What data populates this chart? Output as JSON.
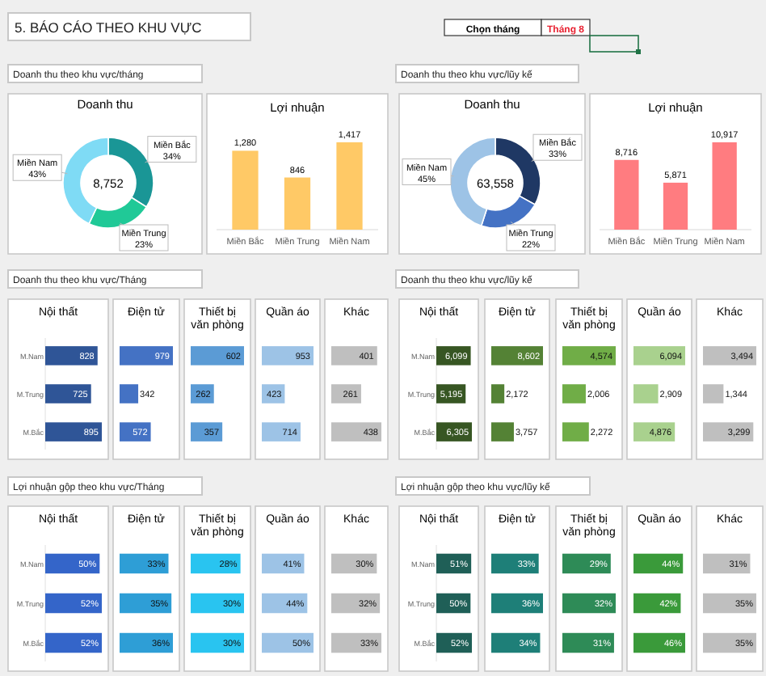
{
  "chart_data": [
    {
      "type": "other",
      "title": "5. BÁO CÁO THEO KHU VỰC",
      "annotations": [
        "Chọn tháng",
        "Tháng 8",
        "Doanh thu theo khu vực/tháng",
        "Doanh thu theo khu vực/lũy kế",
        "Doanh thu theo khu vực/Tháng",
        "Doanh thu theo khu vực/lũy kế",
        "Lợi nhuận gộp theo khu vực/Tháng",
        "Lợi nhuận gộp theo khu vực/lũy kế"
      ]
    },
    {
      "type": "donut",
      "title": "Doanh thu",
      "categories": [
        "Miền Bắc",
        "Miền Trung",
        "Miền Nam"
      ],
      "values": [
        34,
        23,
        43
      ],
      "value_labels": [
        "34%",
        "23%",
        "43%"
      ],
      "colors": [
        "#1a9696",
        "#20c997",
        "#7fdbf5"
      ],
      "annotations": [
        "8,752"
      ]
    },
    {
      "type": "bar",
      "title": "Lợi nhuận",
      "categories": [
        "Miền Bắc",
        "Miền Trung",
        "Miền Nam"
      ],
      "values": [
        1280,
        846,
        1417
      ],
      "value_labels": [
        "1,280",
        "846",
        "1,417"
      ],
      "color": "#ffc966"
    },
    {
      "type": "donut",
      "title": "Doanh thu",
      "categories": [
        "Miền Bắc",
        "Miền Trung",
        "Miền Nam"
      ],
      "values": [
        33,
        22,
        45
      ],
      "value_labels": [
        "33%",
        "22%",
        "45%"
      ],
      "colors": [
        "#1f3864",
        "#4472c4",
        "#9dc3e6"
      ],
      "annotations": [
        "63,558"
      ]
    },
    {
      "type": "bar",
      "title": "Lợi nhuận",
      "categories": [
        "Miền Bắc",
        "Miền Trung",
        "Miền Nam"
      ],
      "values": [
        8716,
        5871,
        10917
      ],
      "value_labels": [
        "8,716",
        "5,871",
        "10,917"
      ],
      "color": "#ff7c80"
    },
    {
      "type": "bar",
      "orientation": "horizontal",
      "title": "Nội thất",
      "categories": [
        "M.Nam",
        "M.Trung",
        "M.Bắc"
      ],
      "values": [
        828,
        725,
        895
      ],
      "color": "#2f5597",
      "data_labels": true,
      "tick_labels": "y"
    },
    {
      "type": "bar",
      "orientation": "horizontal",
      "title": "Điện tử",
      "categories": [
        null,
        null,
        null
      ],
      "values": [
        979,
        342,
        572
      ],
      "color": "#4472c4",
      "data_labels": true,
      "tick_labels": false
    },
    {
      "type": "bar",
      "orientation": "horizontal",
      "title": "Thiết bị văn phòng",
      "categories": [
        null,
        null,
        null
      ],
      "values": [
        602,
        262,
        357
      ],
      "color": "#5b9bd5",
      "data_labels": true,
      "tick_labels": false
    },
    {
      "type": "bar",
      "orientation": "horizontal",
      "title": "Quần áo",
      "categories": [
        null,
        null,
        null
      ],
      "values": [
        953,
        423,
        714
      ],
      "color": "#9dc3e6",
      "data_labels": true,
      "tick_labels": false
    },
    {
      "type": "bar",
      "orientation": "horizontal",
      "title": "Khác",
      "categories": [
        null,
        null,
        null
      ],
      "values": [
        401,
        261,
        438
      ],
      "color": "#bfbfbf",
      "data_labels": true,
      "tick_labels": false
    },
    {
      "type": "bar",
      "orientation": "horizontal",
      "title": "Nội thất",
      "categories": [
        "M.Nam",
        "M.Trung",
        "M.Bắc"
      ],
      "values": [
        6099,
        5195,
        6305
      ],
      "value_labels": [
        "6,099",
        "5,195",
        "6,305"
      ],
      "color": "#375623",
      "tick_labels": "y"
    },
    {
      "type": "bar",
      "orientation": "horizontal",
      "title": "Điện tử",
      "categories": [
        null,
        null,
        null
      ],
      "values": [
        8602,
        2172,
        3757
      ],
      "value_labels": [
        "8,602",
        "2,172",
        "3,757"
      ],
      "color": "#548235",
      "tick_labels": false
    },
    {
      "type": "bar",
      "orientation": "horizontal",
      "title": "Thiết bị văn phòng",
      "categories": [
        null,
        null,
        null
      ],
      "values": [
        4574,
        2006,
        2272
      ],
      "value_labels": [
        "4,574",
        "2,006",
        "2,272"
      ],
      "color": "#70ad47",
      "tick_labels": false
    },
    {
      "type": "bar",
      "orientation": "horizontal",
      "title": "Quần áo",
      "categories": [
        null,
        null,
        null
      ],
      "values": [
        6094,
        2909,
        4876
      ],
      "value_labels": [
        "6,094",
        "2,909",
        "4,876"
      ],
      "color": "#a9d18e",
      "tick_labels": false
    },
    {
      "type": "bar",
      "orientation": "horizontal",
      "title": "Khác",
      "categories": [
        null,
        null,
        null
      ],
      "values": [
        3494,
        1344,
        3299
      ],
      "value_labels": [
        "3,494",
        "1,344",
        "3,299"
      ],
      "color": "#bfbfbf",
      "tick_labels": false
    },
    {
      "type": "bar",
      "orientation": "horizontal",
      "title": "Nội thất",
      "categories": [
        "M.Nam",
        "M.Trung",
        "M.Bắc"
      ],
      "values": [
        50,
        52,
        52
      ],
      "value_labels": [
        "50%",
        "52%",
        "52%"
      ],
      "color": "#3465c9",
      "tick_labels": "y"
    },
    {
      "type": "bar",
      "orientation": "horizontal",
      "title": "Điện tử",
      "categories": [
        null,
        null,
        null
      ],
      "values": [
        33,
        35,
        36
      ],
      "value_labels": [
        "33%",
        "35%",
        "36%"
      ],
      "color": "#2e9ed6",
      "tick_labels": false
    },
    {
      "type": "bar",
      "orientation": "horizontal",
      "title": "Thiết bị văn phòng",
      "categories": [
        null,
        null,
        null
      ],
      "values": [
        28,
        30,
        30
      ],
      "value_labels": [
        "28%",
        "30%",
        "30%"
      ],
      "color": "#29c4f0",
      "tick_labels": false
    },
    {
      "type": "bar",
      "orientation": "horizontal",
      "title": "Quần áo",
      "categories": [
        null,
        null,
        null
      ],
      "values": [
        41,
        44,
        50
      ],
      "value_labels": [
        "41%",
        "44%",
        "50%"
      ],
      "color": "#9dc3e6",
      "tick_labels": false
    },
    {
      "type": "bar",
      "orientation": "horizontal",
      "title": "Khác",
      "categories": [
        null,
        null,
        null
      ],
      "values": [
        30,
        32,
        33
      ],
      "value_labels": [
        "30%",
        "32%",
        "33%"
      ],
      "color": "#bfbfbf",
      "tick_labels": false
    },
    {
      "type": "bar",
      "orientation": "horizontal",
      "title": "Nội thất",
      "categories": [
        "M.Nam",
        "M.Trung",
        "M.Bắc"
      ],
      "values": [
        51,
        50,
        52
      ],
      "value_labels": [
        "51%",
        "50%",
        "52%"
      ],
      "color": "#1f5f57",
      "tick_labels": "y"
    },
    {
      "type": "bar",
      "orientation": "horizontal",
      "title": "Điện tử",
      "categories": [
        null,
        null,
        null
      ],
      "values": [
        33,
        36,
        34
      ],
      "value_labels": [
        "33%",
        "36%",
        "34%"
      ],
      "color": "#1e7f78",
      "tick_labels": false
    },
    {
      "type": "bar",
      "orientation": "horizontal",
      "title": "Thiết bị văn phòng",
      "categories": [
        null,
        null,
        null
      ],
      "values": [
        29,
        32,
        31
      ],
      "value_labels": [
        "29%",
        "32%",
        "31%"
      ],
      "color": "#2e8b57",
      "tick_labels": false
    },
    {
      "type": "bar",
      "orientation": "horizontal",
      "title": "Quần áo",
      "categories": [
        null,
        null,
        null
      ],
      "values": [
        44,
        42,
        46
      ],
      "value_labels": [
        "44%",
        "42%",
        "46%"
      ],
      "color": "#3a9a3a",
      "tick_labels": false
    },
    {
      "type": "bar",
      "orientation": "horizontal",
      "title": "Khác",
      "categories": [
        null,
        null,
        null
      ],
      "values": [
        31,
        35,
        35
      ],
      "value_labels": [
        "31%",
        "35%",
        "35%"
      ],
      "color": "#bfbfbf",
      "tick_labels": false
    }
  ]
}
